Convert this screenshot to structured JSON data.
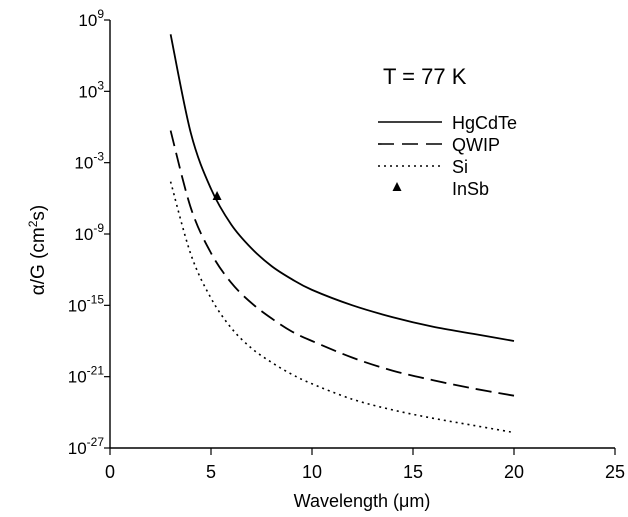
{
  "chart_data": {
    "type": "line",
    "annotation": "T = 77 K",
    "xlabel": "Wavelength (μm)",
    "ylabel_parts": [
      "α/G (cm",
      "2",
      "s)"
    ],
    "xlim": [
      0,
      25
    ],
    "ylim_exp": [
      -27,
      9
    ],
    "y_scale": "log",
    "x_ticks": [
      0,
      5,
      10,
      15,
      20,
      25
    ],
    "y_tick_exponents": [
      9,
      3,
      -3,
      -9,
      -15,
      -21,
      -27
    ],
    "y_tick_labels": [
      "10",
      "10",
      "10",
      "10",
      "10",
      "10",
      "10"
    ],
    "y_tick_exp_labels": [
      "9",
      "3",
      "-3",
      "-9",
      "-15",
      "-21",
      "-27"
    ],
    "grid": false,
    "legend_position": "top-right",
    "series": [
      {
        "name": "HgCdTe",
        "style": "solid",
        "x": [
          3,
          4,
          5,
          6,
          7,
          8,
          9,
          10,
          12,
          14,
          16,
          18,
          20
        ],
        "log10_y": [
          7.8,
          -0.5,
          -5.2,
          -8.2,
          -10.2,
          -11.7,
          -12.8,
          -13.7,
          -15.0,
          -16.0,
          -16.8,
          -17.4,
          -18.0
        ]
      },
      {
        "name": "QWIP",
        "style": "dashed",
        "x": [
          3,
          4,
          5,
          6,
          7,
          8,
          9,
          10,
          12,
          14,
          16,
          18,
          20
        ],
        "log10_y": [
          -0.3,
          -6.8,
          -10.6,
          -13.1,
          -14.8,
          -16.1,
          -17.2,
          -18.0,
          -19.4,
          -20.5,
          -21.3,
          -22.0,
          -22.6
        ]
      },
      {
        "name": "Si",
        "style": "dotted",
        "x": [
          3,
          4,
          5,
          6,
          7,
          8,
          9,
          10,
          12,
          14,
          16,
          18,
          20
        ],
        "log10_y": [
          -4.6,
          -10.7,
          -14.4,
          -16.9,
          -18.6,
          -19.8,
          -20.8,
          -21.6,
          -22.9,
          -23.8,
          -24.5,
          -25.1,
          -25.7
        ]
      },
      {
        "name": "InSb",
        "style": "marker-triangle",
        "x": [
          5.3
        ],
        "log10_y": [
          -5.8
        ]
      }
    ]
  }
}
